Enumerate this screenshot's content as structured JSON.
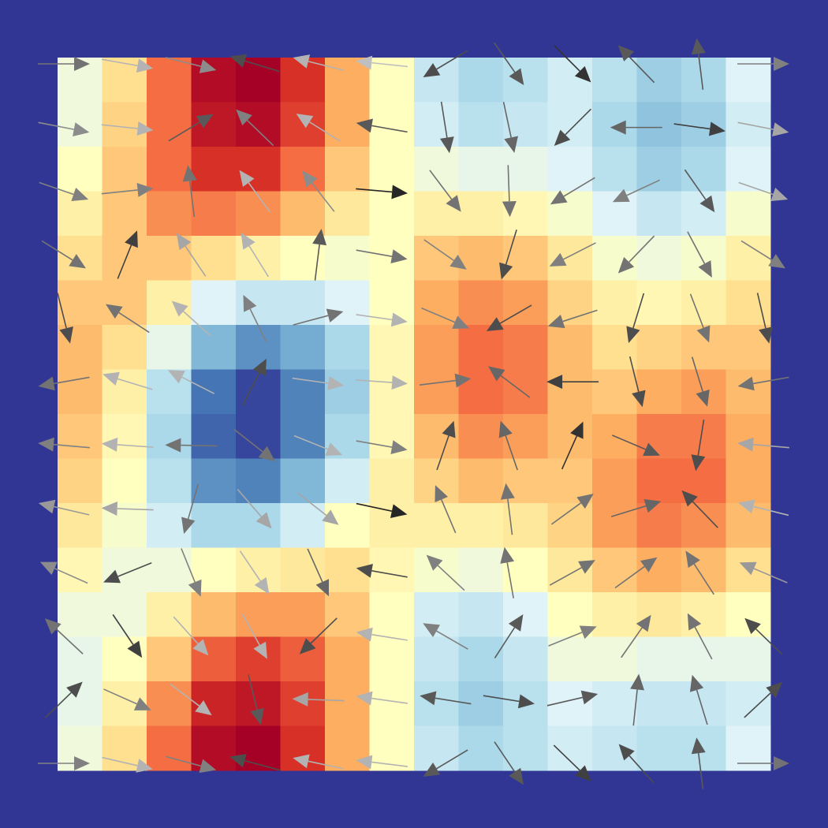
{
  "chart_data": {
    "type": "heatmap",
    "background": "#313695",
    "zlim": [
      -1,
      1
    ],
    "colormap": [
      "#313695",
      "#4575b4",
      "#74add1",
      "#abd9e9",
      "#e0f3f8",
      "#ffffbf",
      "#fee090",
      "#fdae61",
      "#f46d43",
      "#d73027",
      "#a50026"
    ],
    "z": [
      [
        -0.1,
        0.2,
        0.6,
        0.95,
        1.0,
        0.8,
        0.4,
        0.0,
        -0.3,
        -0.4,
        -0.35,
        -0.25,
        -0.35,
        -0.45,
        -0.4,
        -0.2
      ],
      [
        -0.1,
        0.25,
        0.6,
        0.9,
        0.95,
        0.75,
        0.4,
        0.0,
        -0.25,
        -0.35,
        -0.3,
        -0.25,
        -0.4,
        -0.5,
        -0.45,
        -0.25
      ],
      [
        0.0,
        0.3,
        0.6,
        0.8,
        0.8,
        0.6,
        0.3,
        0.0,
        -0.1,
        -0.15,
        -0.15,
        -0.2,
        -0.35,
        -0.45,
        -0.4,
        -0.2
      ],
      [
        0.1,
        0.3,
        0.5,
        0.55,
        0.5,
        0.35,
        0.15,
        0.0,
        0.1,
        0.1,
        0.05,
        -0.05,
        -0.2,
        -0.3,
        -0.25,
        -0.05
      ],
      [
        0.2,
        0.3,
        0.3,
        0.2,
        0.1,
        0.0,
        -0.05,
        0.0,
        0.3,
        0.35,
        0.3,
        0.15,
        -0.05,
        -0.1,
        -0.05,
        0.1
      ],
      [
        0.3,
        0.3,
        0.1,
        -0.2,
        -0.3,
        -0.3,
        -0.2,
        0.0,
        0.4,
        0.5,
        0.45,
        0.25,
        0.1,
        0.05,
        0.1,
        0.2
      ],
      [
        0.35,
        0.2,
        -0.15,
        -0.55,
        -0.7,
        -0.6,
        -0.4,
        0.05,
        0.45,
        0.6,
        0.55,
        0.35,
        0.2,
        0.25,
        0.3,
        0.3
      ],
      [
        0.35,
        0.1,
        -0.35,
        -0.8,
        -0.95,
        -0.75,
        -0.45,
        0.05,
        0.45,
        0.6,
        0.55,
        0.35,
        0.3,
        0.4,
        0.45,
        0.35
      ],
      [
        0.3,
        0.05,
        -0.4,
        -0.85,
        -0.95,
        -0.75,
        -0.4,
        0.05,
        0.35,
        0.5,
        0.45,
        0.35,
        0.4,
        0.55,
        0.55,
        0.4
      ],
      [
        0.25,
        0.0,
        -0.35,
        -0.7,
        -0.75,
        -0.55,
        -0.25,
        0.1,
        0.25,
        0.35,
        0.3,
        0.3,
        0.45,
        0.6,
        0.6,
        0.4
      ],
      [
        0.15,
        -0.05,
        -0.25,
        -0.4,
        -0.4,
        -0.25,
        0.0,
        0.1,
        0.1,
        0.1,
        0.15,
        0.25,
        0.45,
        0.55,
        0.5,
        0.35
      ],
      [
        0.05,
        -0.1,
        -0.1,
        0.0,
        0.1,
        0.15,
        0.2,
        0.05,
        -0.05,
        -0.1,
        0.0,
        0.15,
        0.3,
        0.4,
        0.35,
        0.2
      ],
      [
        -0.1,
        -0.1,
        0.1,
        0.35,
        0.45,
        0.45,
        0.3,
        0.0,
        -0.25,
        -0.3,
        -0.2,
        0.0,
        0.1,
        0.15,
        0.1,
        0.0
      ],
      [
        -0.15,
        0.0,
        0.3,
        0.65,
        0.75,
        0.65,
        0.4,
        0.0,
        -0.3,
        -0.4,
        -0.3,
        -0.1,
        -0.1,
        -0.15,
        -0.15,
        -0.15
      ],
      [
        -0.15,
        0.1,
        0.5,
        0.85,
        0.9,
        0.75,
        0.4,
        0.0,
        -0.35,
        -0.45,
        -0.35,
        -0.2,
        -0.25,
        -0.3,
        -0.3,
        -0.25
      ],
      [
        -0.1,
        0.2,
        0.6,
        0.95,
        1.0,
        0.8,
        0.4,
        0.0,
        -0.3,
        -0.4,
        -0.35,
        -0.25,
        -0.3,
        -0.35,
        -0.35,
        -0.2
      ]
    ],
    "arrow_angles": [
      [
        0,
        10,
        14,
        197,
        194,
        186,
        149,
        55,
        45,
        -134,
        -97,
        0
      ],
      [
        11,
        6,
        -31,
        -136,
        -148,
        190,
        81,
        78,
        135,
        180,
        8,
        11
      ],
      [
        19,
        -6,
        -97,
        -126,
        -128,
        5,
        53,
        88,
        149,
        155,
        55,
        19
      ],
      [
        32,
        -68,
        -124,
        -122,
        -83,
        10,
        35,
        107,
        153,
        134,
        62,
        32
      ],
      [
        76,
        -147,
        -138,
        -116,
        -15,
        8,
        23,
        150,
        162,
        107,
        69,
        77
      ],
      [
        170,
        197,
        207,
        -63,
        8,
        4,
        -7,
        217,
        180,
        76,
        73,
        170
      ],
      [
        185,
        184,
        181,
        38,
        22,
        10,
        -71,
        -109,
        -66,
        23,
        99,
        185
      ],
      [
        193,
        182,
        106,
        49,
        38,
        12,
        -113,
        -97,
        -36,
        -17,
        -134,
        194
      ],
      [
        204,
        158,
        68,
        56,
        66,
        190,
        -137,
        -100,
        -29,
        -36,
        -123,
        203
      ],
      [
        -137,
        56,
        48,
        61,
        136,
        189,
        -150,
        -57,
        -22,
        -55,
        -118,
        -136
      ],
      [
        -44,
        24,
        37,
        76,
        182,
        188,
        189,
        9,
        -13,
        -84,
        -107,
        -43
      ],
      [
        0,
        13,
        15,
        195,
        192,
        187,
        149,
        56,
        44,
        -132,
        -97,
        0
      ]
    ],
    "arrow_gray": [
      [
        0.45,
        0.7,
        0.55,
        0.3,
        0.7,
        0.75,
        0.3,
        0.35,
        0.2,
        0.35,
        0.35,
        0.5
      ],
      [
        0.55,
        0.7,
        0.35,
        0.5,
        0.7,
        0.35,
        0.35,
        0.4,
        0.3,
        0.4,
        0.25,
        0.65
      ],
      [
        0.5,
        0.5,
        0.45,
        0.7,
        0.55,
        0.15,
        0.45,
        0.45,
        0.45,
        0.5,
        0.35,
        0.65
      ],
      [
        0.45,
        0.25,
        0.65,
        0.7,
        0.35,
        0.45,
        0.5,
        0.3,
        0.5,
        0.45,
        0.45,
        0.5
      ],
      [
        0.3,
        0.45,
        0.7,
        0.5,
        0.45,
        0.7,
        0.5,
        0.3,
        0.45,
        0.3,
        0.45,
        0.3
      ],
      [
        0.45,
        0.7,
        0.7,
        0.3,
        0.7,
        0.7,
        0.45,
        0.4,
        0.25,
        0.3,
        0.4,
        0.45
      ],
      [
        0.5,
        0.7,
        0.45,
        0.45,
        0.7,
        0.5,
        0.3,
        0.4,
        0.2,
        0.35,
        0.3,
        0.65
      ],
      [
        0.6,
        0.65,
        0.45,
        0.65,
        0.65,
        0.15,
        0.45,
        0.45,
        0.45,
        0.4,
        0.3,
        0.7
      ],
      [
        0.55,
        0.3,
        0.5,
        0.7,
        0.4,
        0.3,
        0.5,
        0.45,
        0.45,
        0.45,
        0.45,
        0.6
      ],
      [
        0.45,
        0.25,
        0.7,
        0.7,
        0.3,
        0.7,
        0.5,
        0.35,
        0.5,
        0.45,
        0.45,
        0.3
      ],
      [
        0.3,
        0.5,
        0.7,
        0.35,
        0.65,
        0.7,
        0.35,
        0.3,
        0.35,
        0.4,
        0.4,
        0.3
      ],
      [
        0.5,
        0.7,
        0.5,
        0.3,
        0.7,
        0.7,
        0.35,
        0.35,
        0.25,
        0.3,
        0.35,
        0.45
      ]
    ]
  }
}
